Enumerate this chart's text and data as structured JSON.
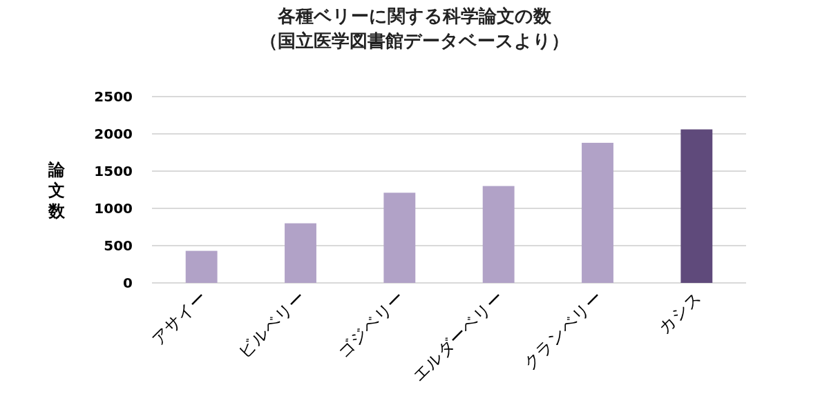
{
  "chart_data": {
    "type": "bar",
    "title": "各種ベリーに関する科学論文の数",
    "subtitle": "（国立医学図書館データベースより）",
    "ylabel": "論文数",
    "categories": [
      "アサイー",
      "ビルベリー",
      "ゴジベリー",
      "エルダーベリー",
      "クランベリー",
      "カシス"
    ],
    "values": [
      430,
      800,
      1210,
      1300,
      1880,
      2060
    ],
    "colors": [
      "#b1a2c7",
      "#b1a2c7",
      "#b1a2c7",
      "#b1a2c7",
      "#b1a2c7",
      "#5f4a7b"
    ],
    "ylim": [
      0,
      2500
    ],
    "yticks": [
      0,
      500,
      1000,
      1500,
      2000,
      2500
    ],
    "grid": "y"
  }
}
